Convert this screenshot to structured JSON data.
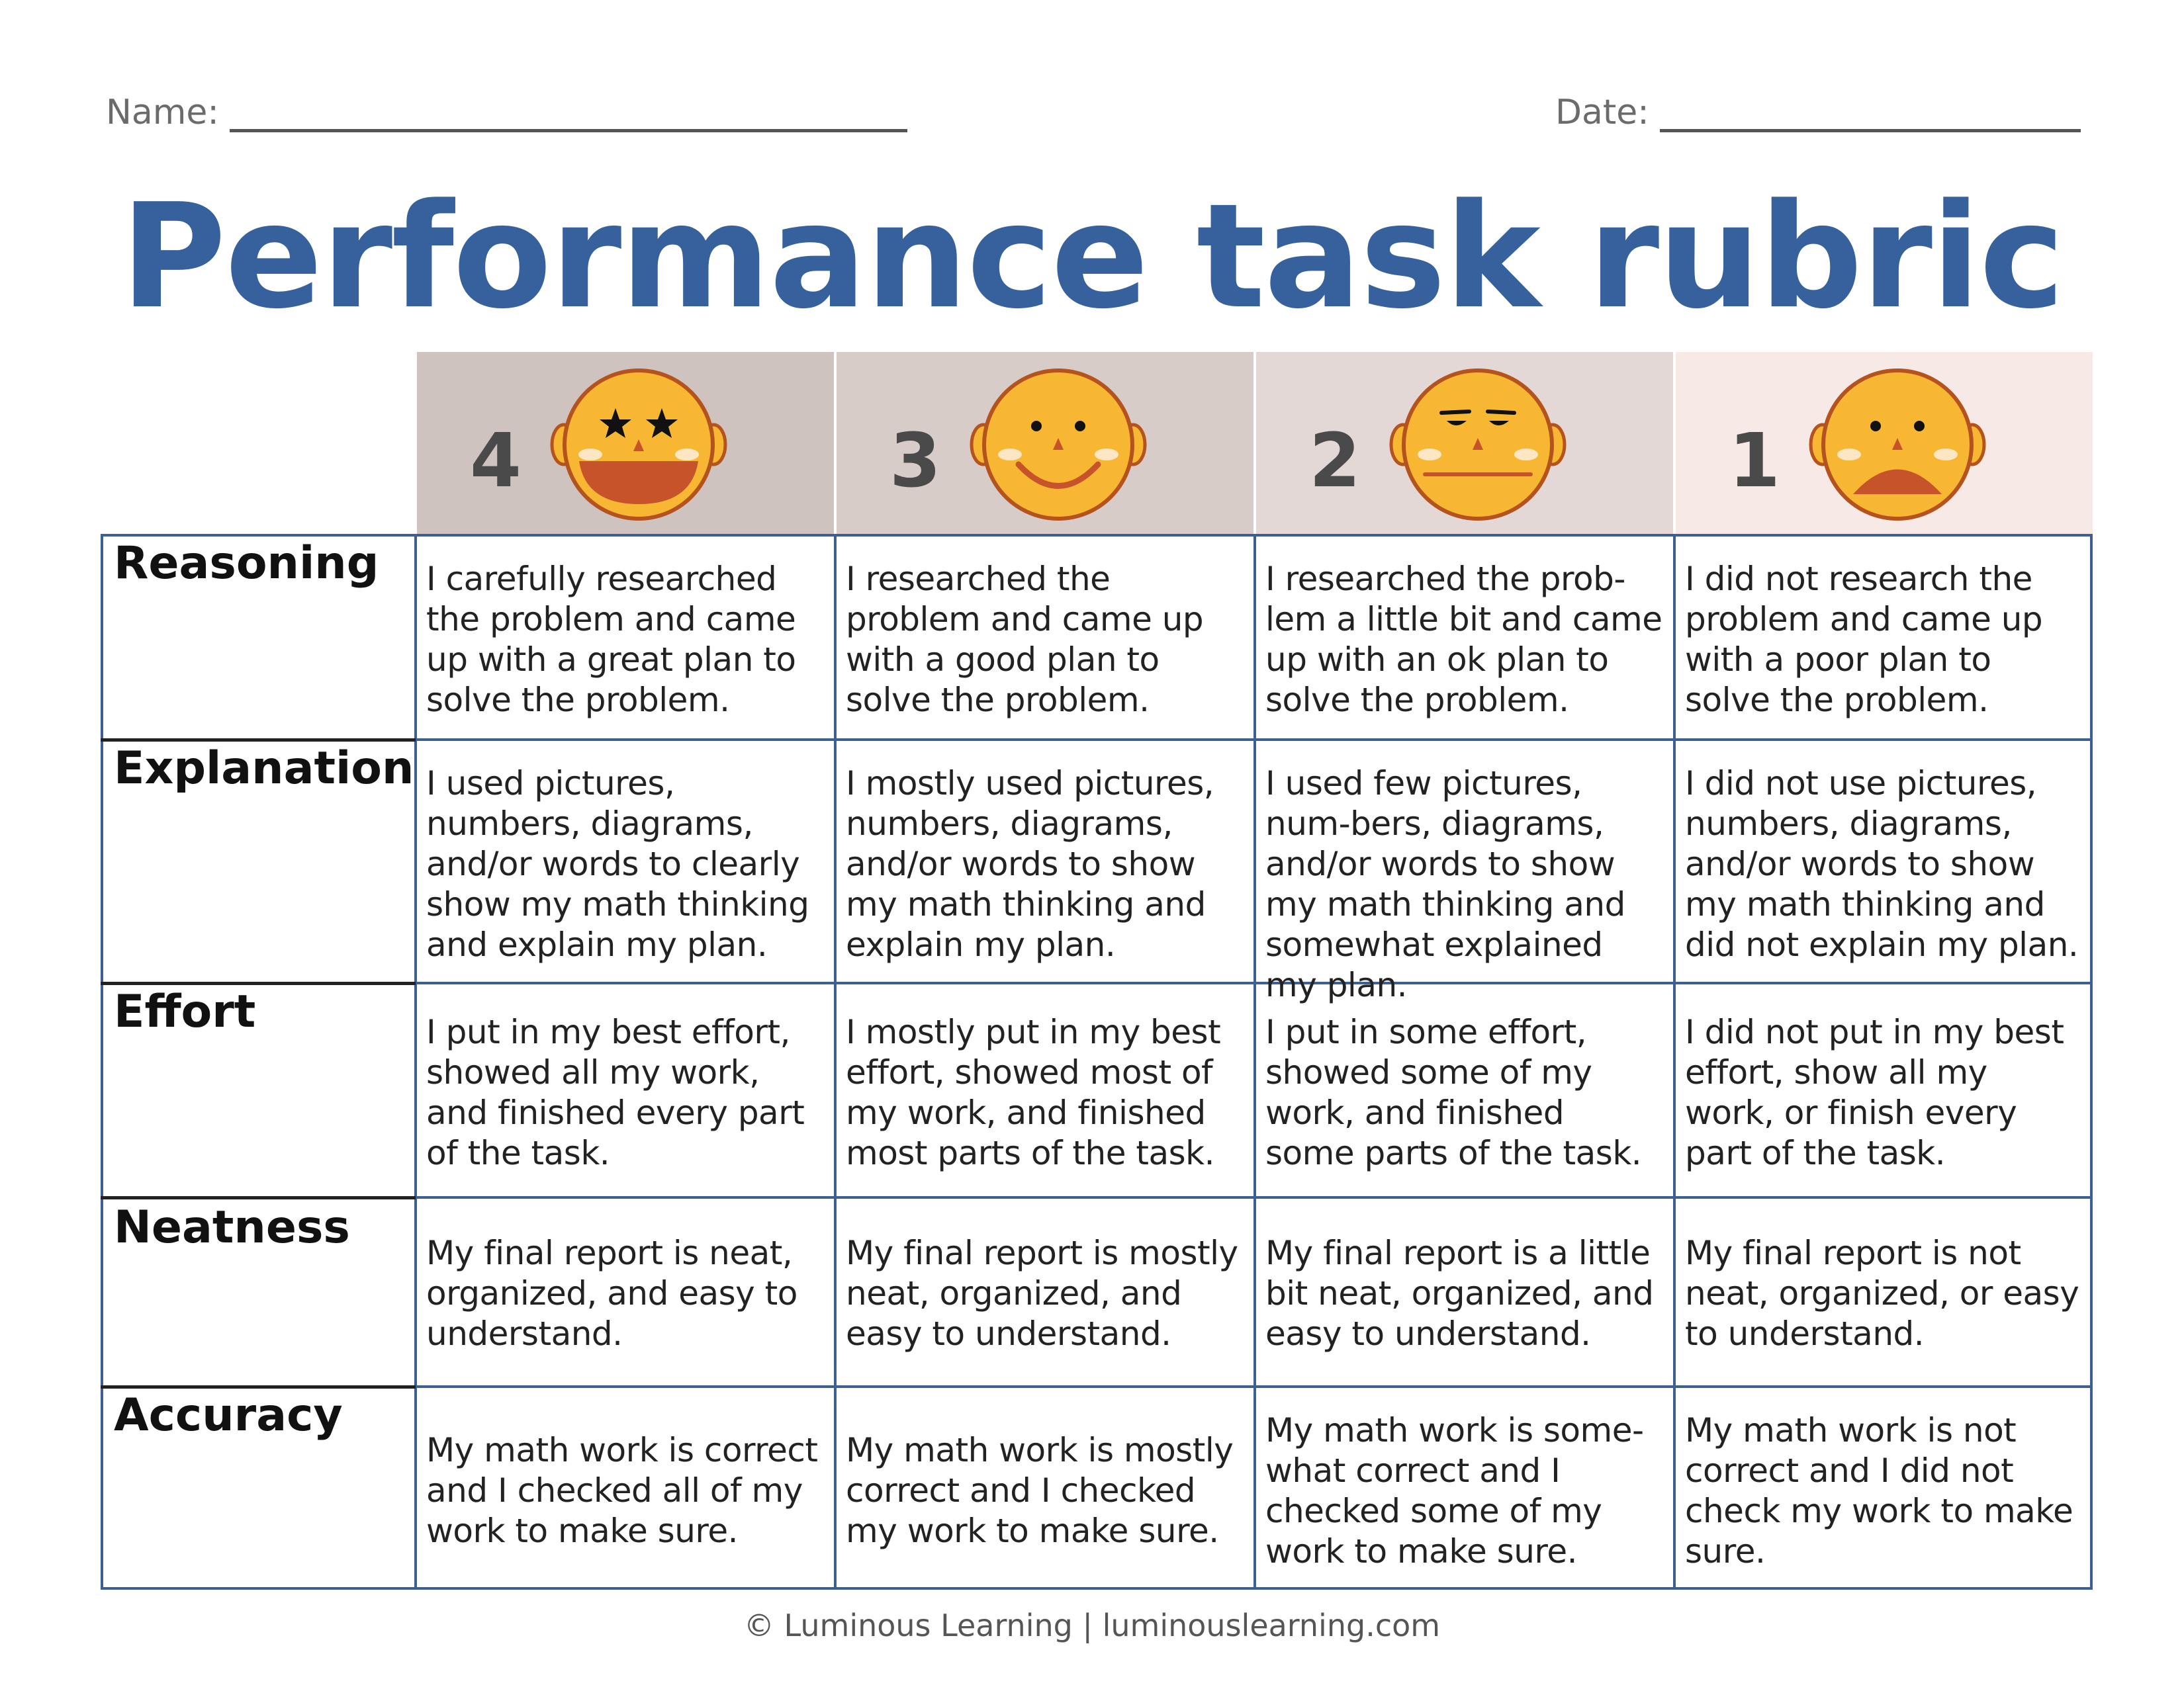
{
  "form": {
    "name_label": "Name:",
    "date_label": "Date:"
  },
  "title": "Performance task rubric",
  "levels": [
    {
      "score": "4",
      "face": "star-eyes-face-icon",
      "bg": "#cfc3bf"
    },
    {
      "score": "3",
      "face": "smiling-face-icon",
      "bg": "#d7ccc8"
    },
    {
      "score": "2",
      "face": "neutral-face-icon",
      "bg": "#e3d8d5"
    },
    {
      "score": "1",
      "face": "frowning-face-icon",
      "bg": "#f7e9e5"
    }
  ],
  "criteria": [
    {
      "name": "Reasoning",
      "cells": [
        "I carefully researched the problem and came up with a great plan to solve the problem.",
        "I researched the problem and came up with a good plan to solve the problem.",
        "I researched the prob-lem a little bit and came up with an ok plan to solve the problem.",
        "I did not research the problem and came up with a poor plan to solve the problem."
      ]
    },
    {
      "name": "Explanation",
      "cells": [
        "I used pictures, numbers, diagrams, and/or words to clearly show my math thinking and explain my plan.",
        "I mostly used pictures, numbers, diagrams, and/or words to show my math thinking and explain my plan.",
        "I used few pictures, num-bers, diagrams, and/or words to show my math thinking and somewhat explained my plan.",
        "I did not use pictures, numbers, diagrams, and/or words to show my math thinking and did not explain my plan."
      ]
    },
    {
      "name": "Effort",
      "cells": [
        "I put in my best effort, showed all my work, and finished every part of the task.",
        "I mostly put in my best effort, showed most of my work, and finished most parts of the task.",
        "I put in some effort, showed some of my work, and finished some parts of the task.",
        "I did not put in my best effort, show all my work, or finish every part of the task."
      ]
    },
    {
      "name": "Neatness",
      "cells": [
        "My final report is neat, organized, and easy to understand.",
        "My final report is mostly neat, organized, and easy to understand.",
        "My final report is a little bit neat, organized, and easy to understand.",
        "My final report is not neat, organized, or easy to understand."
      ]
    },
    {
      "name": "Accuracy",
      "cells": [
        "My math work is correct and I checked all of my work to make sure.",
        "My math work is mostly correct and I checked my work to make sure.",
        "My math work is some-what correct and I checked some of my work to make sure.",
        "My math work is not correct and I did not check my work to make sure."
      ]
    }
  ],
  "footer": "© Luminous Learning | luminouslearning.com",
  "colors": {
    "title": "#36619d",
    "grid": "#3c5f96",
    "face": "#f7b733",
    "face_outline": "#b5531e",
    "mouth": "#c7532a"
  }
}
